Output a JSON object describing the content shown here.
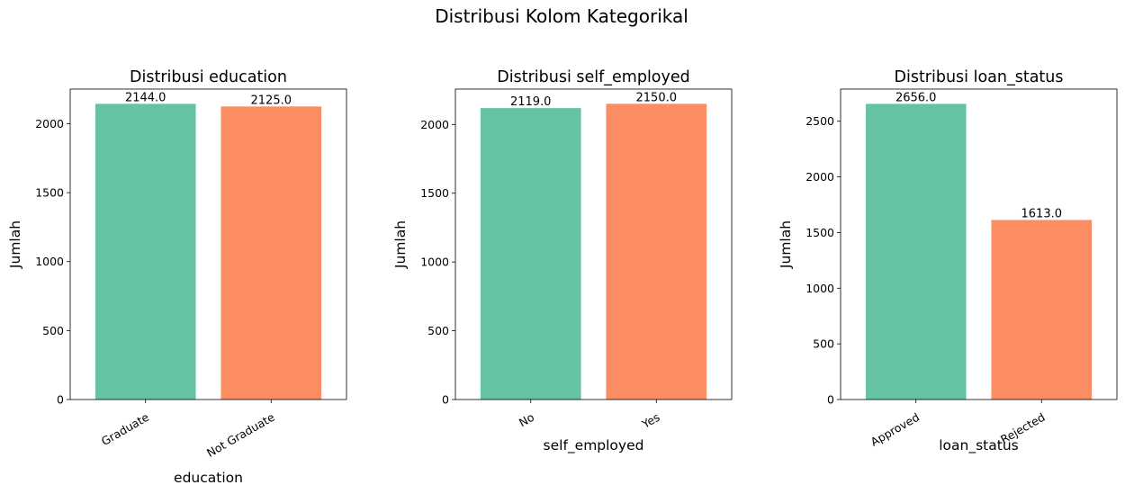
{
  "suptitle": "Distribusi Kolom Kategorikal",
  "colors": {
    "first": "#66c2a5",
    "second": "#fc8d62"
  },
  "chart_data": [
    {
      "type": "bar",
      "title": "Distribusi education",
      "xlabel": "education",
      "ylabel": "Jumlah",
      "categories": [
        "Graduate",
        "Not Graduate"
      ],
      "values": [
        2144,
        2125
      ],
      "value_labels": [
        "2144.0",
        "2125.0"
      ],
      "ylim": [
        0,
        2251
      ],
      "yticks": [
        0,
        500,
        1000,
        1500,
        2000
      ],
      "ytick_labels": [
        "0",
        "500",
        "1000",
        "1500",
        "2000"
      ]
    },
    {
      "type": "bar",
      "title": "Distribusi self_employed",
      "xlabel": "self_employed",
      "ylabel": "Jumlah",
      "categories": [
        "No",
        "Yes"
      ],
      "values": [
        2119,
        2150
      ],
      "value_labels": [
        "2119.0",
        "2150.0"
      ],
      "ylim": [
        0,
        2257
      ],
      "yticks": [
        0,
        500,
        1000,
        1500,
        2000
      ],
      "ytick_labels": [
        "0",
        "500",
        "1000",
        "1500",
        "2000"
      ]
    },
    {
      "type": "bar",
      "title": "Distribusi loan_status",
      "xlabel": "loan_status",
      "ylabel": "Jumlah",
      "categories": [
        "Approved",
        "Rejected"
      ],
      "values": [
        2656,
        1613
      ],
      "value_labels": [
        "2656.0",
        "1613.0"
      ],
      "ylim": [
        0,
        2789
      ],
      "yticks": [
        0,
        500,
        1000,
        1500,
        2000,
        2500
      ],
      "ytick_labels": [
        "0",
        "500",
        "1000",
        "1500",
        "2000",
        "2500"
      ]
    }
  ]
}
